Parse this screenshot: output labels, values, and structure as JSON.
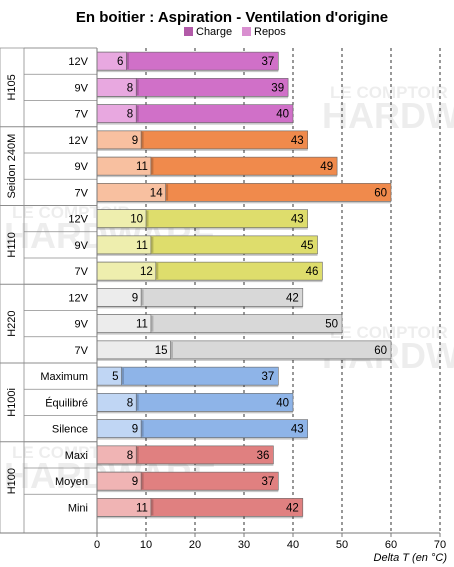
{
  "chart_data": {
    "type": "bar",
    "title": "En boitier : Aspiration - Ventilation d'origine",
    "xlabel": "Delta T (en °C)",
    "xlim": [
      0,
      70
    ],
    "xticks": [
      0,
      10,
      20,
      30,
      40,
      50,
      60,
      70
    ],
    "grid": true,
    "legend": {
      "placement": "top",
      "entries": [
        "Charge",
        "Repos"
      ]
    },
    "watermark": "LE COMPTOIR HARDWARE",
    "groups": [
      {
        "name": "H105",
        "color": "#d070c8",
        "light": "#e8a8e0",
        "rows": [
          {
            "label": "12V",
            "charge": 6,
            "repos": 37
          },
          {
            "label": "9V",
            "charge": 8,
            "repos": 39
          },
          {
            "label": "7V",
            "charge": 8,
            "repos": 40
          }
        ]
      },
      {
        "name": "Seidon 240M",
        "color": "#f08a4c",
        "light": "#f8c0a0",
        "rows": [
          {
            "label": "12V",
            "charge": 9,
            "repos": 43
          },
          {
            "label": "9V",
            "charge": 11,
            "repos": 49
          },
          {
            "label": "7V",
            "charge": 14,
            "repos": 60
          }
        ]
      },
      {
        "name": "H110",
        "color": "#dedd6c",
        "light": "#eeeeae",
        "rows": [
          {
            "label": "12V",
            "charge": 10,
            "repos": 43
          },
          {
            "label": "9V",
            "charge": 11,
            "repos": 45
          },
          {
            "label": "7V",
            "charge": 12,
            "repos": 46
          }
        ]
      },
      {
        "name": "H220",
        "color": "#d8d8d8",
        "light": "#ececec",
        "rows": [
          {
            "label": "12V",
            "charge": 9,
            "repos": 42
          },
          {
            "label": "9V",
            "charge": 11,
            "repos": 50
          },
          {
            "label": "7V",
            "charge": 15,
            "repos": 60
          }
        ]
      },
      {
        "name": "H100i",
        "color": "#8eb4e8",
        "light": "#c0d6f4",
        "rows": [
          {
            "label": "Maximum",
            "charge": 5,
            "repos": 37
          },
          {
            "label": "Équilibré",
            "charge": 8,
            "repos": 40
          },
          {
            "label": "Silence",
            "charge": 9,
            "repos": 43
          }
        ]
      },
      {
        "name": "H100",
        "color": "#e08080",
        "light": "#f0b4b4",
        "rows": [
          {
            "label": "Maxi",
            "charge": 8,
            "repos": 36
          },
          {
            "label": "Moyen",
            "charge": 9,
            "repos": 37
          },
          {
            "label": "Mini",
            "charge": 11,
            "repos": 42
          }
        ]
      }
    ],
    "legend_colors": {
      "charge": "#b25aa8",
      "repos": "#d98fd0"
    }
  }
}
